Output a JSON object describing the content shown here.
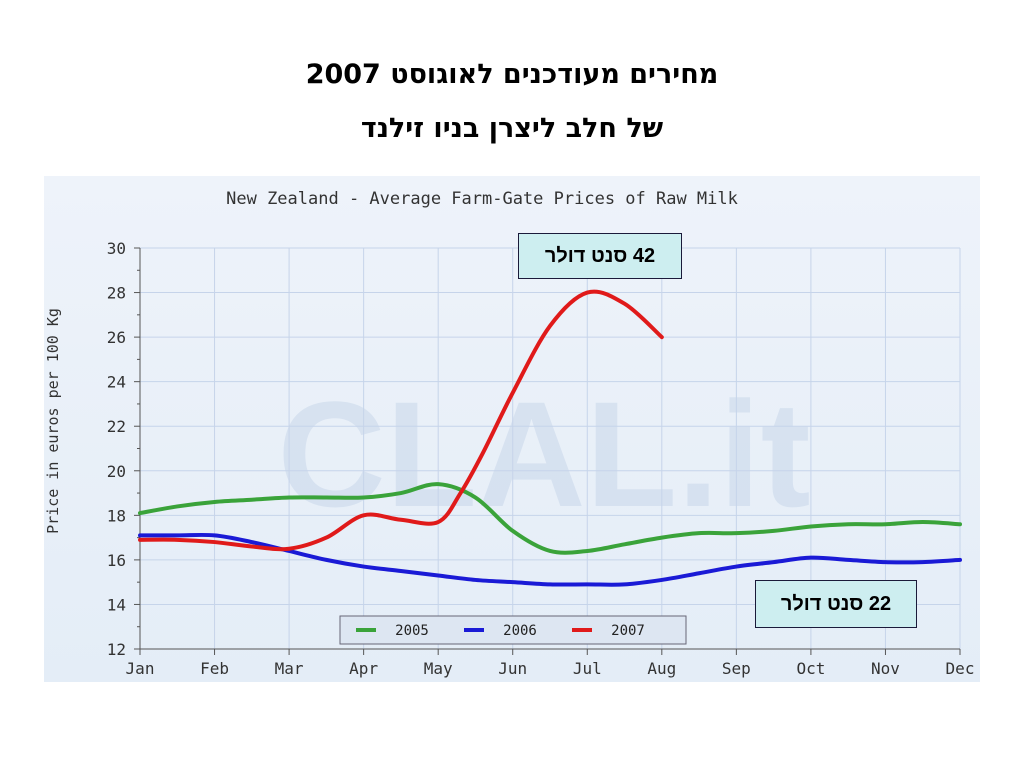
{
  "slide": {
    "title_line1": "מחירים מעודכנים לאוגוסט 2007",
    "title_line2": "של חלב ליצרן בניו זילנד"
  },
  "annotations": {
    "top_note": "42 סנט דולר",
    "bottom_note": "22 סנט דולר"
  },
  "watermark": "CLAL.it",
  "colors": {
    "2005": "#3aa33a",
    "2006": "#1a1ad6",
    "2007": "#e01a1a",
    "grid": "#c6d4ea",
    "axis_text": "#333333"
  },
  "chart_data": {
    "type": "line",
    "title": "New Zealand - Average Farm-Gate Prices of Raw Milk",
    "xlabel": "",
    "ylabel": "Price in euros per 100 Kg",
    "categories": [
      "Jan",
      "Feb",
      "Mar",
      "Apr",
      "May",
      "Jun",
      "Jul",
      "Aug",
      "Sep",
      "Oct",
      "Nov",
      "Dec"
    ],
    "ylim": [
      12,
      30
    ],
    "yticks": [
      12,
      14,
      16,
      18,
      20,
      22,
      24,
      26,
      28,
      30
    ],
    "grid": true,
    "legend_position": "bottom-center",
    "series": [
      {
        "name": "2005",
        "x": [
          1,
          1.5,
          2,
          2.5,
          3,
          3.5,
          4,
          4.5,
          5,
          5.5,
          6,
          6.5,
          7,
          7.5,
          8,
          8.5,
          9,
          9.5,
          10,
          10.5,
          11,
          11.5,
          12
        ],
        "values": [
          18.1,
          18.4,
          18.6,
          18.7,
          18.8,
          18.8,
          18.8,
          19.0,
          19.4,
          18.8,
          17.3,
          16.4,
          16.4,
          16.7,
          17.0,
          17.2,
          17.2,
          17.3,
          17.5,
          17.6,
          17.6,
          17.7,
          17.6
        ]
      },
      {
        "name": "2006",
        "x": [
          1,
          1.5,
          2,
          2.5,
          3,
          3.5,
          4,
          4.5,
          5,
          5.5,
          6,
          6.5,
          7,
          7.5,
          8,
          8.5,
          9,
          9.5,
          10,
          10.5,
          11,
          11.5,
          12
        ],
        "values": [
          17.1,
          17.1,
          17.1,
          16.8,
          16.4,
          16.0,
          15.7,
          15.5,
          15.3,
          15.1,
          15.0,
          14.9,
          14.9,
          14.9,
          15.1,
          15.4,
          15.7,
          15.9,
          16.1,
          16.0,
          15.9,
          15.9,
          16.0
        ]
      },
      {
        "name": "2007",
        "x": [
          1,
          1.5,
          2,
          2.5,
          3,
          3.5,
          4,
          4.5,
          5,
          5.3,
          5.6,
          6,
          6.5,
          7,
          7.5,
          8
        ],
        "values": [
          16.9,
          16.9,
          16.8,
          16.6,
          16.5,
          17.0,
          18.0,
          17.8,
          17.7,
          19.0,
          20.8,
          23.5,
          26.5,
          28.0,
          27.5,
          26.0
        ]
      }
    ]
  }
}
